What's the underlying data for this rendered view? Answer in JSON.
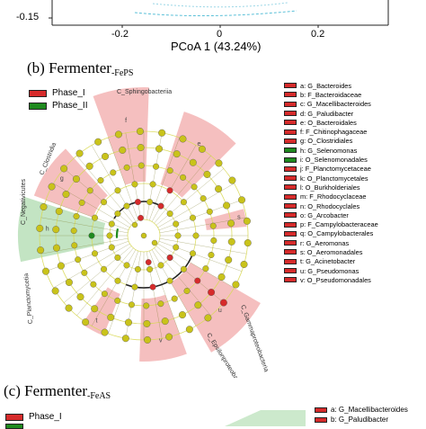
{
  "top_plot": {
    "xlabel": "PCoA 1 (43.24%)",
    "y_tick": "-0.15",
    "x_ticks": [
      "-0.2",
      "0",
      "0.2"
    ]
  },
  "panel_b": {
    "title_main": "(b) Fermenter",
    "title_sub": "-FePS",
    "legend": [
      {
        "label": "Phase_I",
        "color": "#d62b2b"
      },
      {
        "label": "Phase_II",
        "color": "#1f8a1f"
      }
    ],
    "taxa": [
      {
        "label": "a: G_Bacteroides",
        "color": "#d62b2b"
      },
      {
        "label": "b: F_Bacteroidaceae",
        "color": "#d62b2b"
      },
      {
        "label": "c: G_Macellibacteroides",
        "color": "#d62b2b"
      },
      {
        "label": "d: G_Paludibacter",
        "color": "#d62b2b"
      },
      {
        "label": "e: O_Bacteroidales",
        "color": "#d62b2b"
      },
      {
        "label": "f: F_Chitinophagaceae",
        "color": "#d62b2b"
      },
      {
        "label": "g: O_Clostridiales",
        "color": "#d62b2b"
      },
      {
        "label": "h: G_Selenomonas",
        "color": "#1f8a1f"
      },
      {
        "label": "i: O_Selenomonadales",
        "color": "#1f8a1f"
      },
      {
        "label": "j: F_Planctomycetaceae",
        "color": "#d62b2b"
      },
      {
        "label": "k: O_Planctomycetales",
        "color": "#d62b2b"
      },
      {
        "label": "l: O_Burkholderiales",
        "color": "#d62b2b"
      },
      {
        "label": "m: F_Rhodocyclaceae",
        "color": "#d62b2b"
      },
      {
        "label": "n: O_Rhodocyclales",
        "color": "#d62b2b"
      },
      {
        "label": "o: G_Arcobacter",
        "color": "#d62b2b"
      },
      {
        "label": "p: F_Campylobacteraceae",
        "color": "#d62b2b"
      },
      {
        "label": "q: O_Campylobacterales",
        "color": "#d62b2b"
      },
      {
        "label": "r: G_Aeromonas",
        "color": "#d62b2b"
      },
      {
        "label": "s: O_Aeromonadales",
        "color": "#d62b2b"
      },
      {
        "label": "t: G_Acinetobacter",
        "color": "#d62b2b"
      },
      {
        "label": "u: G_Pseudomonas",
        "color": "#d62b2b"
      },
      {
        "label": "v: O_Pseudomonadales",
        "color": "#d62b2b"
      }
    ],
    "class_labels": {
      "sphingobacteriia": "C_Sphingobacteriia",
      "clostridia": "C_Clostridia",
      "negativicutes": "C_Negativicutes",
      "planctomycetia": "C_Planctomycetia",
      "gammaproteobacteria": "C_Gammaproteobacteria",
      "epsilonproteobacteria": "C_Epsilonproteobacteria"
    },
    "sector_letters": {
      "f": "f",
      "e": "e",
      "g": "g",
      "h": "h",
      "u": "u",
      "v": "v",
      "t": "t",
      "s": "s"
    }
  },
  "panel_c": {
    "title_main": "(c) Fermenter",
    "title_sub": "-FeAS",
    "legend": [
      {
        "label": "Phase_I",
        "color": "#d62b2b"
      }
    ],
    "taxa": [
      {
        "label": "a: G_Macellibacteroides",
        "color": "#d62b2b"
      },
      {
        "label": "b: G_Paludibacter",
        "color": "#d62b2b"
      }
    ]
  }
}
